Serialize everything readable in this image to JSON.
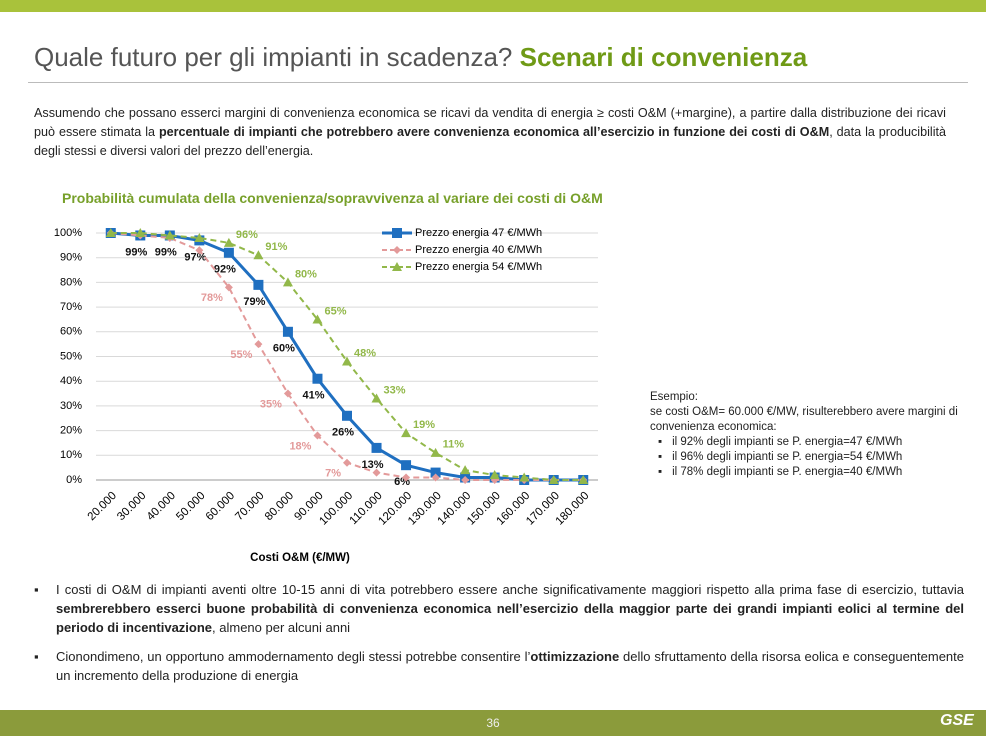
{
  "header": {
    "title": "Quale futuro per gli impianti in scadenza?",
    "title_highlight": "Scenari di convenienza"
  },
  "intro": {
    "runs": [
      {
        "text": "Assumendo che possano esserci margini di convenienza economica se ricavi da vendita di energia  ≥ costi O&M (+margine),  a partire dalla distribuzione dei ricavi può essere stimata la ",
        "bold": false
      },
      {
        "text": "percentuale di impianti che potrebbero avere convenienza economica all’esercizio in funzione dei costi di O&M",
        "bold": true
      },
      {
        "text": ", data la producibilità  degli stessi e diversi valori del prezzo dell’energia.",
        "bold": false
      }
    ]
  },
  "chart_data": {
    "type": "line",
    "title": "Probabilità cumulata della convenienza/sopravvivenza al variare dei costi di O&M",
    "x_label": "Costi O&M (€/MW)",
    "categories": [
      "20.000",
      "30.000",
      "40.000",
      "50.000",
      "60.000",
      "70.000",
      "80.000",
      "90.000",
      "100.000",
      "110.000",
      "120.000",
      "130.000",
      "140.000",
      "150.000",
      "160.000",
      "170.000",
      "180.000"
    ],
    "ylim": [
      0,
      100
    ],
    "yticks": [
      {
        "value": 0,
        "label": "0%"
      },
      {
        "value": 10,
        "label": "10%"
      },
      {
        "value": 20,
        "label": "20%"
      },
      {
        "value": 30,
        "label": "30%"
      },
      {
        "value": 40,
        "label": "40%"
      },
      {
        "value": 50,
        "label": "50%"
      },
      {
        "value": 60,
        "label": "60%"
      },
      {
        "value": 70,
        "label": "70%"
      },
      {
        "value": 80,
        "label": "80%"
      },
      {
        "value": 90,
        "label": "90%"
      },
      {
        "value": 100,
        "label": "100%"
      }
    ],
    "grid": true,
    "series": [
      {
        "name": "Prezzo energia 47 €/MWh",
        "color": "#1f6fc0",
        "marker": "square",
        "dash": false,
        "label_position": "below",
        "values": [
          100,
          99,
          99,
          97,
          92,
          79,
          60,
          41,
          26,
          13,
          6,
          3,
          1,
          1,
          0,
          0,
          0
        ],
        "value_labels": [
          null,
          "99%",
          "99%",
          "97%",
          "92%",
          "79%",
          "60%",
          "41%",
          "26%",
          "13%",
          "6%",
          null,
          null,
          null,
          null,
          null,
          null
        ]
      },
      {
        "name": "Prezzo energia 40 €/MWh",
        "color": "#e39a9a",
        "marker": "diamond",
        "dash": true,
        "label_position": "left",
        "values": [
          100,
          99,
          98,
          93,
          78,
          55,
          35,
          18,
          7,
          3,
          1,
          1,
          0,
          0,
          0,
          0,
          0
        ],
        "value_labels": [
          null,
          null,
          null,
          null,
          "78%",
          "55%",
          "35%",
          "18%",
          "7%",
          null,
          null,
          null,
          null,
          null,
          null,
          null,
          null
        ]
      },
      {
        "name": "Prezzo energia 54 €/MWh",
        "color": "#92b84a",
        "marker": "triangle",
        "dash": true,
        "label_position": "right",
        "values": [
          100,
          100,
          99,
          98,
          96,
          91,
          80,
          65,
          48,
          33,
          19,
          11,
          4,
          2,
          1,
          0,
          0
        ],
        "value_labels": [
          null,
          null,
          null,
          null,
          "96%",
          "91%",
          "80%",
          "65%",
          "48%",
          "33%",
          "19%",
          "11%",
          null,
          null,
          null,
          null,
          null
        ]
      }
    ]
  },
  "example": {
    "heading": "Esempio:",
    "text": "se costi O&M= 60.000 €/MW, risulterebbero  avere margini di convenienza economica:",
    "items": [
      "il 92% degli impianti se P. energia=47 €/MWh",
      "il 96% degli impianti se P. energia=54 €/MWh",
      "il 78% degli impianti se P. energia=40 €/MWh"
    ]
  },
  "bullets": [
    {
      "runs": [
        {
          "text": "I costi di O&M di impianti aventi oltre 10-15 anni di vita potrebbero essere anche significativamente maggiori rispetto alla prima fase di esercizio, tuttavia ",
          "bold": false
        },
        {
          "text": "sembrerebbero esserci buone probabilità di convenienza economica nell’esercizio della maggior parte dei grandi impianti eolici al termine del periodo di incentivazione",
          "bold": true
        },
        {
          "text": ", almeno per alcuni anni",
          "bold": false
        }
      ]
    },
    {
      "runs": [
        {
          "text": "Cionondimeno, un opportuno ammodernamento degli stessi potrebbe consentire l’",
          "bold": false
        },
        {
          "text": "ottimizzazione",
          "bold": true
        },
        {
          "text": " dello sfruttamento della risorsa eolica e conseguentemente un incremento della produzione di energia",
          "bold": false
        }
      ]
    }
  ],
  "footer": {
    "page": "36",
    "logo": "GSE"
  }
}
